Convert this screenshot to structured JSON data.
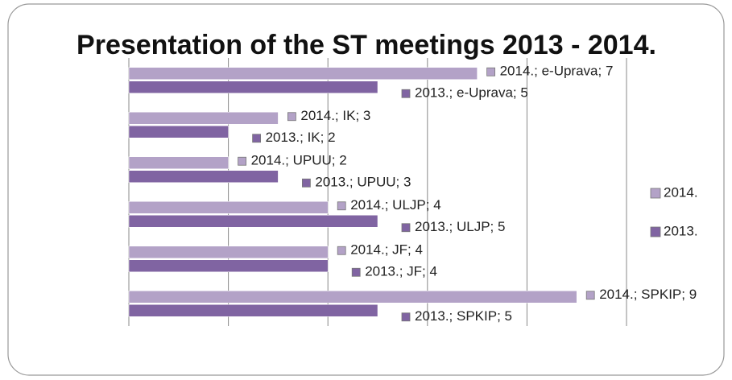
{
  "chart_data": {
    "type": "barh",
    "title": "Presentation of the ST meetings 2013 - 2014.",
    "categories": [
      "e-Uprava",
      "IK",
      "UPUU",
      "ULJP",
      "JF",
      "SPKIP"
    ],
    "series": [
      {
        "name": "2014.",
        "color": "#b3a2c7",
        "values": [
          7,
          3,
          2,
          4,
          4,
          9
        ],
        "value_labels": [
          "2014.; e-Uprava; 7",
          "2014.; IK; 3",
          "2014.; UPUU; 2",
          "2014.; ULJP; 4",
          "2014.; JF; 4",
          "2014.; SPKIP; 9"
        ]
      },
      {
        "name": "2013.",
        "color": "#8064a2",
        "values": [
          5,
          2,
          3,
          5,
          4,
          5
        ],
        "value_labels": [
          "2013.; e-Uprava; 5",
          "2013.; IK; 2",
          "2013.; UPUU; 3",
          "2013.; ULJP; 5",
          "2013.; JF; 4",
          "2013.; SPKIP; 5"
        ]
      }
    ],
    "xlim": [
      0,
      10
    ],
    "xticks": [
      0,
      2,
      4,
      6,
      8,
      10
    ],
    "grid": true,
    "legend": "right"
  }
}
